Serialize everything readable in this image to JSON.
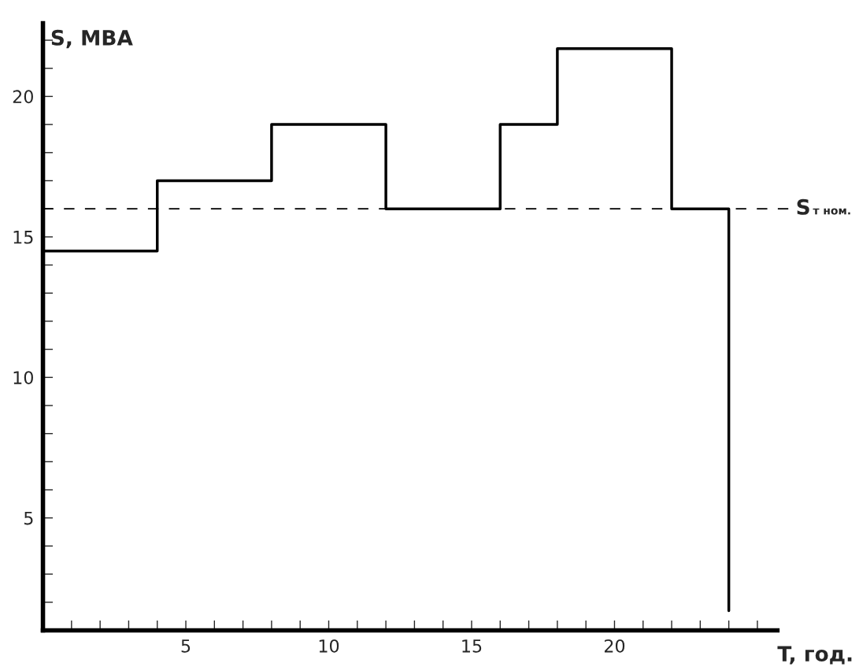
{
  "chart_data": {
    "type": "step",
    "xlabel": "T, год.",
    "ylabel": "S, МВА",
    "x": [
      0,
      4,
      8,
      12,
      16,
      18,
      22,
      24
    ],
    "series": [
      {
        "color": "#000000",
        "values": [
          14.5,
          17,
          19,
          16,
          19,
          21.7,
          16,
          1.7
        ]
      }
    ],
    "xlim": [
      0,
      25.7
    ],
    "ylim": [
      1,
      22.6
    ],
    "xticks": [
      {
        "value": 1,
        "label": null
      },
      {
        "value": 2,
        "label": null
      },
      {
        "value": 3,
        "label": null
      },
      {
        "value": 4,
        "label": null
      },
      5,
      {
        "value": 6,
        "label": null
      },
      {
        "value": 7,
        "label": null
      },
      {
        "value": 8,
        "label": null
      },
      {
        "value": 9,
        "label": null
      },
      10,
      {
        "value": 11,
        "label": null
      },
      {
        "value": 12,
        "label": null
      },
      {
        "value": 13,
        "label": null
      },
      {
        "value": 14,
        "label": null
      },
      15,
      {
        "value": 16,
        "label": null
      },
      {
        "value": 17,
        "label": null
      },
      {
        "value": 18,
        "label": null
      },
      {
        "value": 19,
        "label": null
      },
      20,
      {
        "value": 21,
        "label": null
      },
      {
        "value": 22,
        "label": null
      },
      {
        "value": 23,
        "label": null
      },
      {
        "value": 24,
        "label": null
      },
      {
        "value": 25,
        "label": null
      }
    ],
    "yticks": [
      {
        "value": 2,
        "label": null
      },
      {
        "value": 3,
        "label": null
      },
      {
        "value": 4,
        "label": null
      },
      5,
      {
        "value": 6,
        "label": null
      },
      {
        "value": 7,
        "label": null
      },
      {
        "value": 8,
        "label": null
      },
      {
        "value": 9,
        "label": null
      },
      10,
      {
        "value": 11,
        "label": null
      },
      {
        "value": 12,
        "label": null
      },
      {
        "value": 13,
        "label": null
      },
      {
        "value": 14,
        "label": null
      },
      15,
      {
        "value": 16,
        "label": null
      },
      {
        "value": 17,
        "label": null
      },
      {
        "value": 18,
        "label": null
      },
      {
        "value": 19,
        "label": null
      },
      20,
      {
        "value": 21,
        "label": null
      },
      {
        "value": 22,
        "label": null
      }
    ],
    "ref_lines": [
      {
        "axis": "y",
        "value": 16,
        "label": "S$_{т ном.}$",
        "color": "#000000",
        "line_style": "dashed"
      }
    ],
    "grid": false,
    "legend": false,
    "marker": "none",
    "line_style": "solid"
  }
}
